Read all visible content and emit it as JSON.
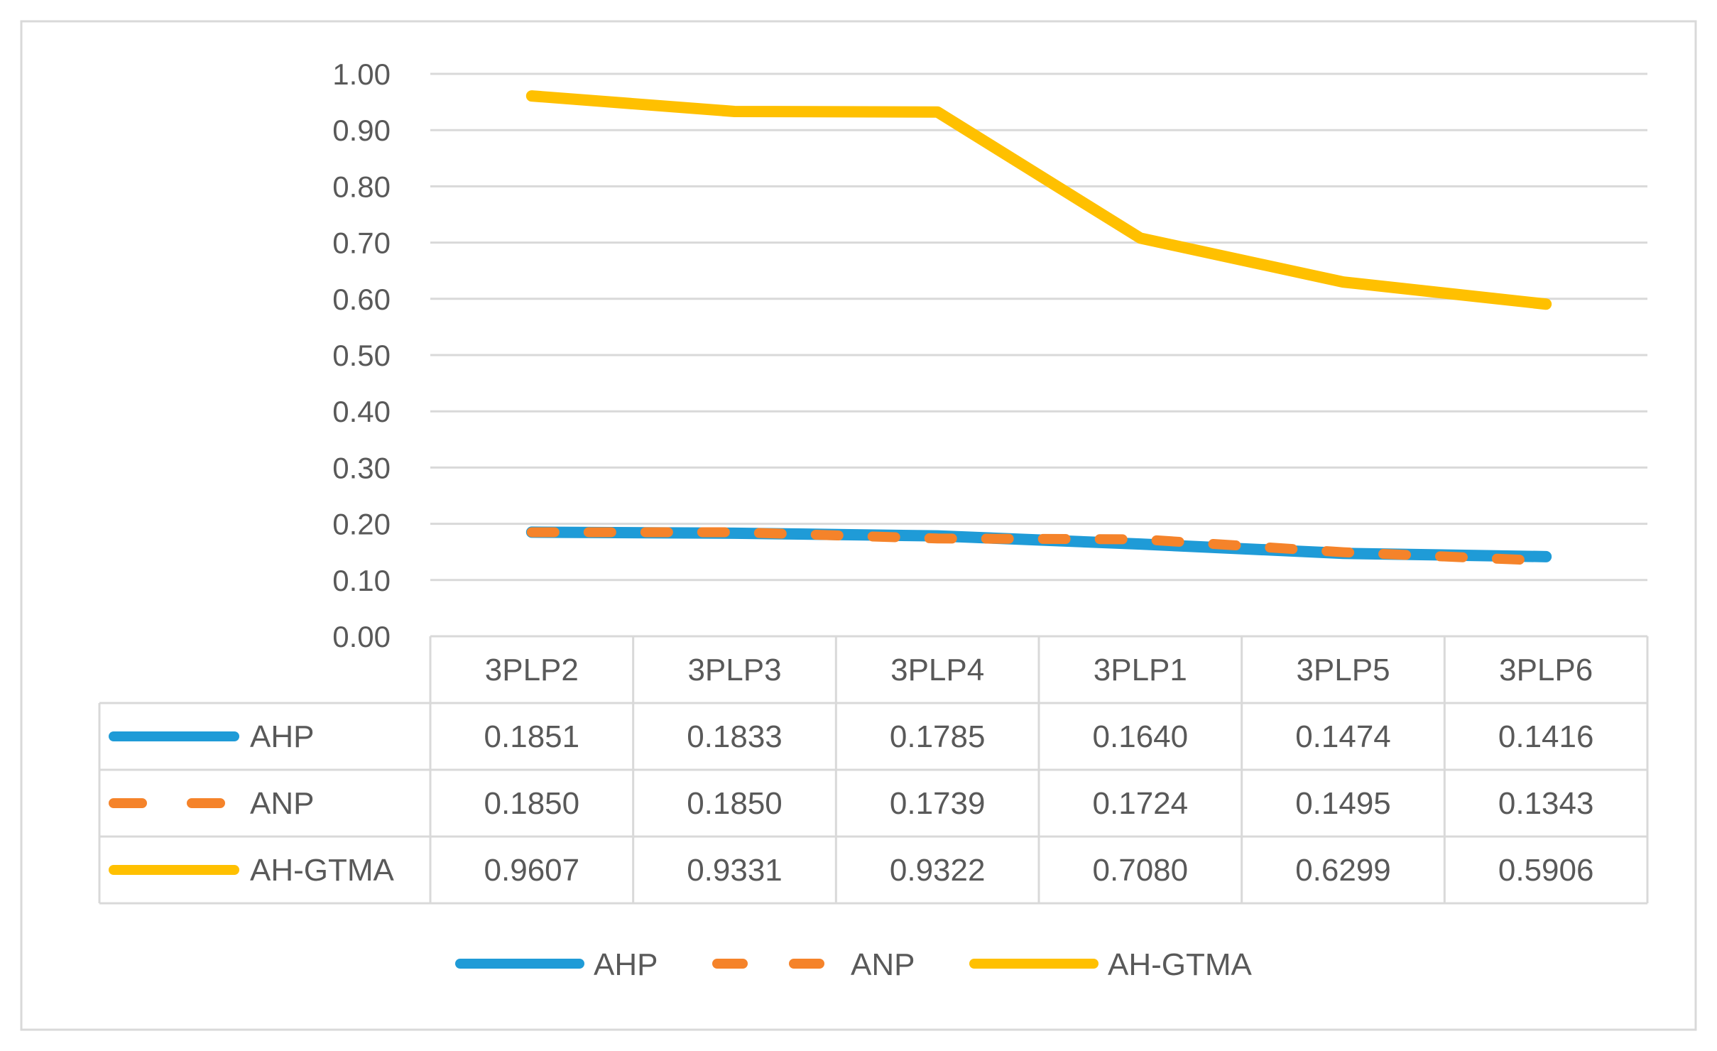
{
  "chart_data": {
    "type": "line",
    "title": "",
    "xlabel": "",
    "ylabel": "",
    "categories": [
      "3PLP2",
      "3PLP3",
      "3PLP4",
      "3PLP1",
      "3PLP5",
      "3PLP6"
    ],
    "ylim": [
      0,
      1
    ],
    "yticks": [
      "0.00",
      "0.10",
      "0.20",
      "0.30",
      "0.40",
      "0.50",
      "0.60",
      "0.70",
      "0.80",
      "0.90",
      "1.00"
    ],
    "grid": true,
    "legend_position": "bottom",
    "data_table": true,
    "series": [
      {
        "name": "AHP",
        "style": "solid",
        "color": "#1f9bd7",
        "values": [
          0.1851,
          0.1833,
          0.1785,
          0.164,
          0.1474,
          0.1416
        ],
        "labels": [
          "0.1851",
          "0.1833",
          "0.1785",
          "0.1640",
          "0.1474",
          "0.1416"
        ]
      },
      {
        "name": "ANP",
        "style": "dashed",
        "color": "#f5832a",
        "values": [
          0.185,
          0.185,
          0.1739,
          0.1724,
          0.1495,
          0.1343
        ],
        "labels": [
          "0.1850",
          "0.1850",
          "0.1739",
          "0.1724",
          "0.1495",
          "0.1343"
        ]
      },
      {
        "name": "AH-GTMA",
        "style": "solid",
        "color": "#ffc000",
        "values": [
          0.9607,
          0.9331,
          0.9322,
          0.708,
          0.6299,
          0.5906
        ],
        "labels": [
          "0.9607",
          "0.9331",
          "0.9322",
          "0.7080",
          "0.6299",
          "0.5906"
        ]
      }
    ]
  }
}
